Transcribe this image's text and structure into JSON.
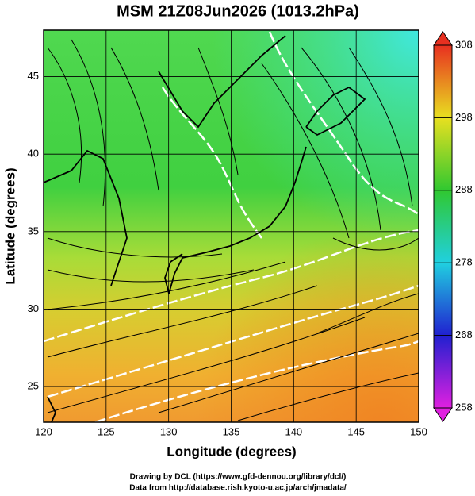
{
  "title": "MSM 21Z08Jun2026 (1013.2hPa)",
  "x_label": "Longitude (degrees)",
  "y_label": "Latitude  (degrees)",
  "credits": [
    "Drawing by DCL (https://www.gfd-dennou.org/library/dcl/)",
    "Data from http://database.rish.kyoto-u.ac.jp/arch/jmadata/"
  ],
  "map": {
    "xlim": [
      120,
      150
    ],
    "xticks": [
      120,
      125,
      130,
      135,
      140,
      145,
      150
    ],
    "ylim": [
      22.7,
      48
    ],
    "yticks": [
      25,
      30,
      35,
      40,
      45
    ],
    "grid": true
  },
  "colorbar": {
    "range": [
      258,
      308
    ],
    "ticks": [
      258,
      268,
      278,
      288,
      298,
      308
    ]
  }
}
